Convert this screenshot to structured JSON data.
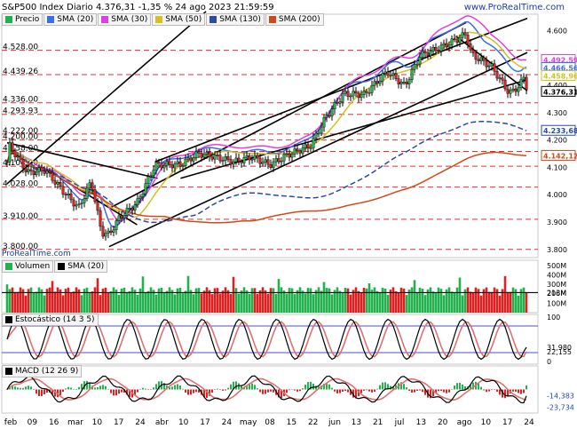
{
  "header": {
    "title": "S&P500 Index Diario 4.376,31 -1,35 % 24 ago 2023 21:59:59",
    "website": "www.ProRealTime.com"
  },
  "colors": {
    "price_up": "#22b14c",
    "price_down": "#e02020",
    "sma20": "#3a6fe8",
    "sma30": "#e040e0",
    "sma50": "#d4c020",
    "sma130": "#2a4aa8",
    "sma200": "#d04a18",
    "support_line": "#e03030",
    "trend_line": "#000000",
    "vol_sma": "#000000",
    "stoch_k": "#000000",
    "stoch_d": "#e07070",
    "macd_line": "#000000",
    "macd_signal": "#e07070",
    "highlight_bg": "#dcdcdc"
  },
  "price_panel": {
    "legend": [
      {
        "label": "Precio",
        "color": "#22b14c"
      },
      {
        "label": "SMA (20)",
        "color": "#3a6fe8"
      },
      {
        "label": "SMA (30)",
        "color": "#e040e0"
      },
      {
        "label": "SMA (50)",
        "color": "#d4c020"
      },
      {
        "label": "SMA (130)",
        "color": "#2a4aa8"
      },
      {
        "label": "SMA (200)",
        "color": "#d04a18"
      }
    ],
    "right_labels": [
      {
        "text": "4.492,59",
        "value": 4492.59,
        "color": "#e040e0"
      },
      {
        "text": "4.466,56",
        "value": 4466.56,
        "color": "#3a6fe8"
      },
      {
        "text": "4.458,96",
        "value": 4458.96,
        "color": "#d4c020"
      },
      {
        "text": "4.376,31",
        "value": 4376.31,
        "color": "#000000"
      },
      {
        "text": "4.233,68",
        "value": 4233.68,
        "color": "#2a4aa8"
      },
      {
        "text": "4.142,12",
        "value": 4142.12,
        "color": "#d04a18"
      }
    ],
    "axis_ticks": [
      "4.600",
      "4.500",
      "4.400",
      "4.300",
      "4.200",
      "4.100",
      "4.000",
      "3.900",
      "3.800"
    ],
    "watermark": "ProRealTime.com"
  },
  "volume_panel": {
    "legend": [
      {
        "label": "Volumen",
        "color": "#22b14c"
      },
      {
        "label": "SMA (20)",
        "color": "#000000"
      }
    ],
    "axis_labels": [
      "500M",
      "400M",
      "300M",
      "213M",
      "206M",
      "100M"
    ]
  },
  "stoch_panel": {
    "legend": [
      {
        "label": "Estocástico (14 3 5)",
        "color": "#000000"
      }
    ],
    "axis_labels": [
      "100",
      "31,980",
      "22,155",
      "0"
    ]
  },
  "macd_panel": {
    "legend": [
      {
        "label": "MACD (12 26 9)",
        "color": "#000000"
      }
    ],
    "axis_labels": [
      "-14,383",
      "-23,734"
    ]
  },
  "x_labels": [
    "feb",
    "09",
    "16",
    "mar",
    "10",
    "17",
    "24",
    "abr",
    "10",
    "17",
    "24",
    "may",
    "08",
    "15",
    "22",
    "jun",
    "13",
    "21",
    "jul",
    "13",
    "20",
    "ago",
    "10",
    "17",
    "24"
  ],
  "chart_data": {
    "type": "candlestick",
    "title": "S&P500 Index Diario",
    "last_close": 4376.31,
    "change_pct": -1.35,
    "date": "24 ago 2023",
    "period": "2023-02-01 to 2023-08-24",
    "support_levels": [
      {
        "label": "4.528,00",
        "value": 4528.0
      },
      {
        "label": "4.439,26",
        "value": 4439.26
      },
      {
        "label": "4.336,00",
        "value": 4336.0
      },
      {
        "label": "4.293,93",
        "value": 4293.93
      },
      {
        "label": "4.222,00",
        "value": 4222.0
      },
      {
        "label": "4.200,00",
        "value": 4200.0
      },
      {
        "label": "4.158,00",
        "value": 4158.0
      },
      {
        "label": "4.104,00",
        "value": 4104.0
      },
      {
        "label": "4.028,00",
        "value": 4028.0
      },
      {
        "label": "3.910,00",
        "value": 3910.0
      },
      {
        "label": "3.800,00",
        "value": 3800.0
      }
    ],
    "close_weekly": [
      {
        "x": "2023-02-01",
        "close": 4119
      },
      {
        "x": "2023-02-02",
        "close": 4179
      },
      {
        "x": "2023-02-09",
        "close": 4081
      },
      {
        "x": "2023-02-16",
        "close": 4090
      },
      {
        "x": "2023-02-23",
        "close": 4012
      },
      {
        "x": "2023-03-01",
        "close": 3951
      },
      {
        "x": "2023-03-06",
        "close": 4048
      },
      {
        "x": "2023-03-10",
        "close": 3861
      },
      {
        "x": "2023-03-13",
        "close": 3855
      },
      {
        "x": "2023-03-17",
        "close": 3916
      },
      {
        "x": "2023-03-24",
        "close": 3970
      },
      {
        "x": "2023-03-31",
        "close": 4109
      },
      {
        "x": "2023-04-10",
        "close": 4110
      },
      {
        "x": "2023-04-17",
        "close": 4151
      },
      {
        "x": "2023-04-24",
        "close": 4137
      },
      {
        "x": "2023-05-01",
        "close": 4120
      },
      {
        "x": "2023-05-08",
        "close": 4138
      },
      {
        "x": "2023-05-15",
        "close": 4109
      },
      {
        "x": "2023-05-22",
        "close": 4145
      },
      {
        "x": "2023-05-31",
        "close": 4180
      },
      {
        "x": "2023-06-06",
        "close": 4283
      },
      {
        "x": "2023-06-13",
        "close": 4369
      },
      {
        "x": "2023-06-21",
        "close": 4366
      },
      {
        "x": "2023-06-30",
        "close": 4450
      },
      {
        "x": "2023-07-07",
        "close": 4398
      },
      {
        "x": "2023-07-13",
        "close": 4510
      },
      {
        "x": "2023-07-20",
        "close": 4534
      },
      {
        "x": "2023-07-27",
        "close": 4566
      },
      {
        "x": "2023-07-31",
        "close": 4589
      },
      {
        "x": "2023-08-02",
        "close": 4513
      },
      {
        "x": "2023-08-10",
        "close": 4468
      },
      {
        "x": "2023-08-17",
        "close": 4370
      },
      {
        "x": "2023-08-21",
        "close": 4399
      },
      {
        "x": "2023-08-23",
        "close": 4436
      },
      {
        "x": "2023-08-24",
        "close": 4376.31
      }
    ],
    "sma_last": {
      "SMA(20)": 4466.56,
      "SMA(30)": 4492.59,
      "SMA(50)": 4458.96,
      "SMA(130)": 4233.68,
      "SMA(200)": 4142.12
    },
    "volume_sma20": 213000000,
    "volume_last": 206000000,
    "stochastic": {
      "k": 31.98,
      "d": 22.155
    },
    "macd": {
      "macd": -14.383,
      "signal": -23.734
    }
  }
}
